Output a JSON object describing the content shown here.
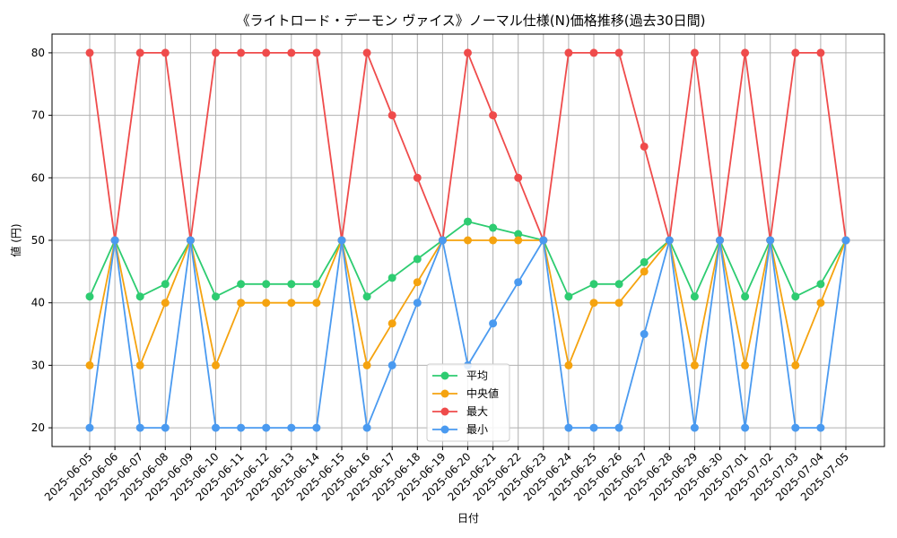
{
  "chart_data": {
    "type": "line",
    "title": "《ライトロード・デーモン ヴァイス》ノーマル仕様(N)価格推移(過去30日間)",
    "xlabel": "日付",
    "ylabel": "値 (円)",
    "ylim": [
      17,
      83
    ],
    "yticks": [
      20,
      30,
      40,
      50,
      60,
      70,
      80
    ],
    "grid": true,
    "legend_position": "lower-center",
    "categories": [
      "2025-06-05",
      "2025-06-06",
      "2025-06-07",
      "2025-06-08",
      "2025-06-09",
      "2025-06-10",
      "2025-06-11",
      "2025-06-12",
      "2025-06-13",
      "2025-06-14",
      "2025-06-15",
      "2025-06-16",
      "2025-06-17",
      "2025-06-18",
      "2025-06-19",
      "2025-06-20",
      "2025-06-21",
      "2025-06-22",
      "2025-06-23",
      "2025-06-24",
      "2025-06-25",
      "2025-06-26",
      "2025-06-27",
      "2025-06-28",
      "2025-06-29",
      "2025-06-30",
      "2025-07-01",
      "2025-07-02",
      "2025-07-03",
      "2025-07-04",
      "2025-07-05"
    ],
    "series": [
      {
        "name": "平均",
        "color": "#2ecc71",
        "values": [
          41,
          50,
          41,
          43,
          50,
          41,
          43,
          43,
          43,
          43,
          50,
          41,
          44,
          47,
          50,
          53,
          52,
          51,
          50,
          41,
          43,
          43,
          46.5,
          50,
          41,
          50,
          41,
          50,
          41,
          43,
          50
        ]
      },
      {
        "name": "中央値",
        "color": "#f5a30f",
        "values": [
          30,
          50,
          30,
          40,
          50,
          30,
          40,
          40,
          40,
          40,
          50,
          30,
          36.7,
          43.3,
          50,
          50,
          50,
          50,
          50,
          30,
          40,
          40,
          45,
          50,
          30,
          50,
          30,
          50,
          30,
          40,
          50
        ]
      },
      {
        "name": "最大",
        "color": "#ef4b4b",
        "values": [
          80,
          50,
          80,
          80,
          50,
          80,
          80,
          80,
          80,
          80,
          50,
          80,
          70,
          60,
          50,
          80,
          70,
          60,
          50,
          80,
          80,
          80,
          65,
          50,
          80,
          50,
          80,
          50,
          80,
          80,
          50
        ]
      },
      {
        "name": "最小",
        "color": "#4a9af0",
        "values": [
          20,
          50,
          20,
          20,
          50,
          20,
          20,
          20,
          20,
          20,
          50,
          20,
          30,
          40,
          50,
          30,
          36.7,
          43.3,
          50,
          20,
          20,
          20,
          35,
          50,
          20,
          50,
          20,
          50,
          20,
          20,
          50
        ]
      }
    ]
  }
}
